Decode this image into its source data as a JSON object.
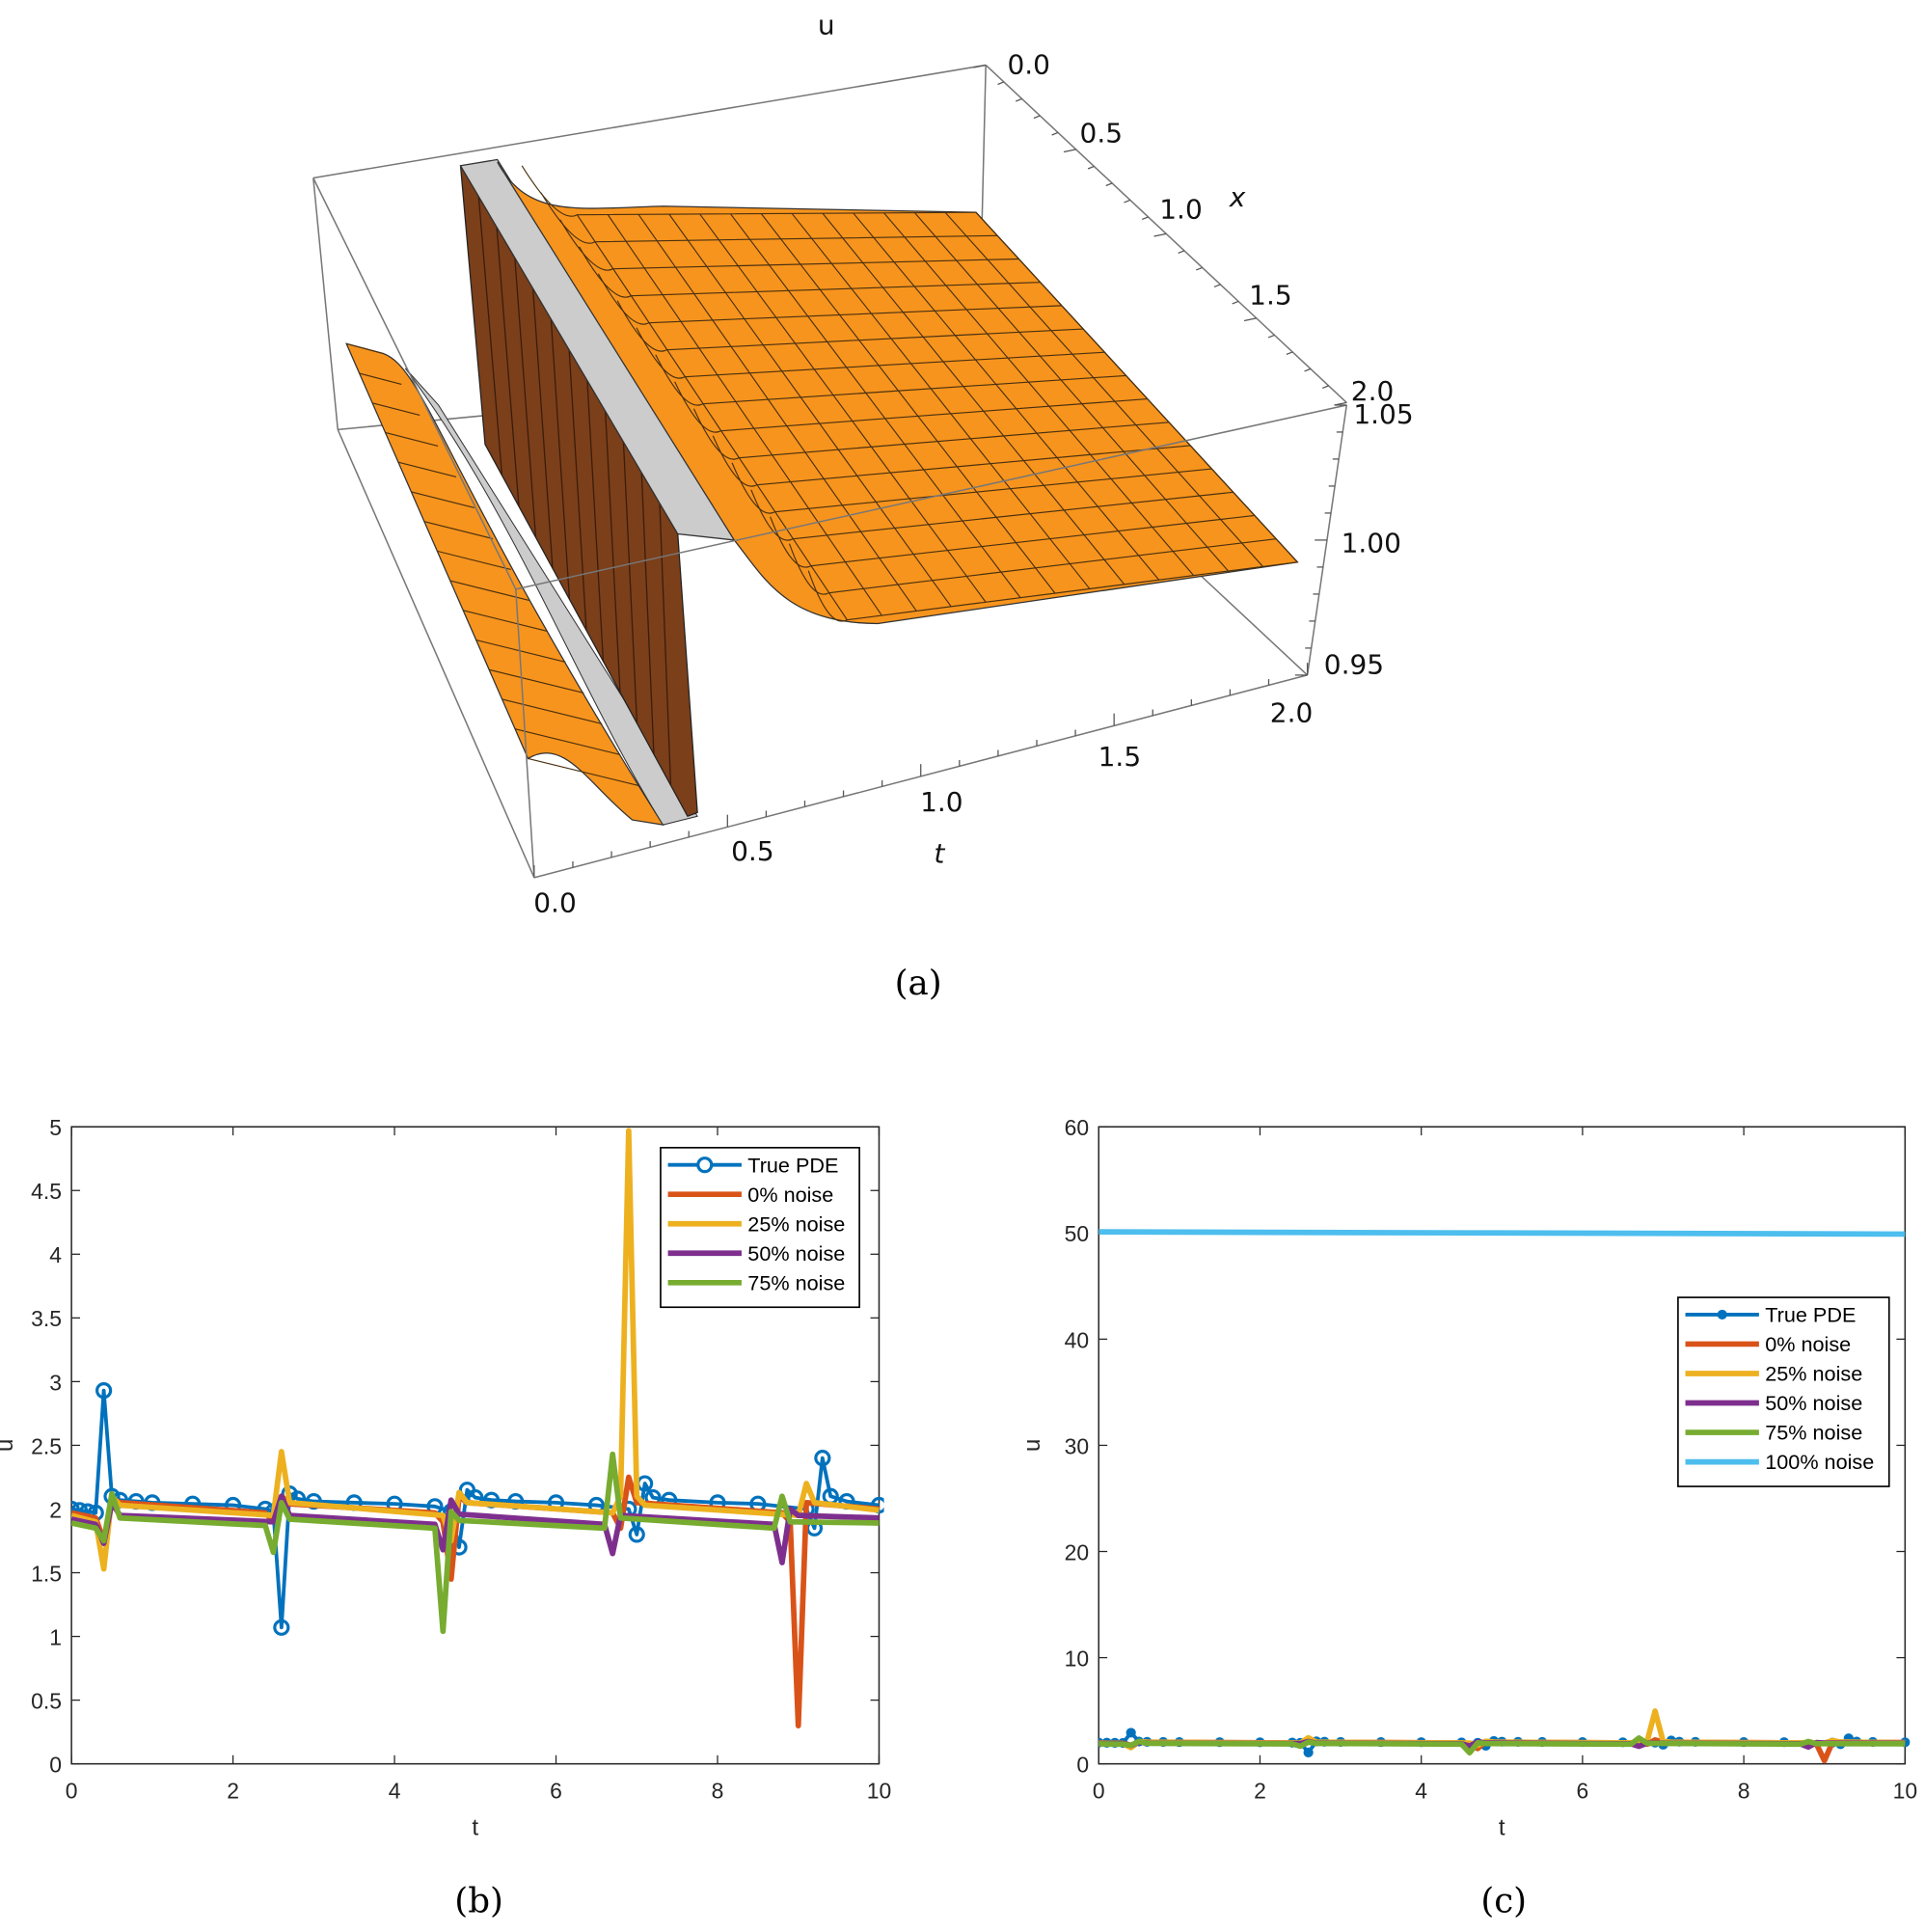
{
  "captions": {
    "a": "(a)",
    "b": "(b)",
    "c": "(c)"
  },
  "surface_plot": {
    "type": "surface3d",
    "zlabel": "u",
    "xlabel": "x",
    "tlabel": "t",
    "x_ticks": [
      "0.0",
      "0.5",
      "1.0",
      "1.5",
      "2.0"
    ],
    "t_ticks": [
      "0.0",
      "0.5",
      "1.0",
      "1.5",
      "2.0"
    ],
    "u_ticks": [
      "0.95",
      "1.00",
      "1.05"
    ],
    "surface_color": "#F7941D",
    "wall_color": "#7B3F1A",
    "underside_color": "#CCCCCC"
  },
  "chart_data": [
    {
      "type": "line",
      "xlabel": "t",
      "ylabel": "u",
      "xlim": [
        0,
        10
      ],
      "ylim": [
        0,
        5
      ],
      "x_ticks": [
        "0",
        "2",
        "4",
        "6",
        "8",
        "10"
      ],
      "y_ticks": [
        "0",
        "0.5",
        "1",
        "1.5",
        "2",
        "2.5",
        "3",
        "3.5",
        "4",
        "4.5",
        "5"
      ],
      "legend_position": "top-right",
      "marker_style": "open-circle",
      "series": [
        {
          "name": "True PDE",
          "color": "#0072BD",
          "marker": true,
          "x": [
            0,
            0.1,
            0.2,
            0.3,
            0.4,
            0.5,
            0.6,
            0.8,
            1.0,
            1.5,
            2.0,
            2.4,
            2.5,
            2.6,
            2.7,
            2.8,
            3.0,
            3.5,
            4.0,
            4.5,
            4.7,
            4.8,
            4.9,
            5.0,
            5.2,
            5.5,
            6.0,
            6.5,
            6.9,
            7.0,
            7.1,
            7.2,
            7.4,
            8.0,
            8.5,
            9.1,
            9.2,
            9.3,
            9.4,
            9.6,
            10
          ],
          "y": [
            2.0,
            1.99,
            1.98,
            1.97,
            2.93,
            2.1,
            2.07,
            2.06,
            2.05,
            2.04,
            2.03,
            2.0,
            1.98,
            1.07,
            2.12,
            2.08,
            2.06,
            2.05,
            2.04,
            2.02,
            1.98,
            1.7,
            2.15,
            2.09,
            2.07,
            2.06,
            2.05,
            2.03,
            2.0,
            1.8,
            2.2,
            2.09,
            2.07,
            2.05,
            2.04,
            2.0,
            1.85,
            2.4,
            2.1,
            2.06,
            2.03
          ]
        },
        {
          "name": "0% noise",
          "color": "#D95319",
          "x": [
            0,
            0.3,
            0.4,
            0.5,
            0.6,
            2.4,
            2.5,
            2.6,
            2.7,
            4.5,
            4.6,
            4.7,
            4.8,
            4.9,
            6.7,
            6.8,
            6.9,
            7.0,
            8.8,
            8.9,
            9.0,
            9.1,
            10
          ],
          "y": [
            1.97,
            1.93,
            1.75,
            2.08,
            2.05,
            1.97,
            1.9,
            2.1,
            2.04,
            1.97,
            1.9,
            1.45,
            2.1,
            2.05,
            1.97,
            1.85,
            2.25,
            2.05,
            1.97,
            1.9,
            0.3,
            2.05,
            2.0
          ]
        },
        {
          "name": "25% noise",
          "color": "#EDB120",
          "x": [
            0,
            0.3,
            0.4,
            0.5,
            0.6,
            2.5,
            2.6,
            2.7,
            4.6,
            4.7,
            4.8,
            4.9,
            6.7,
            6.8,
            6.9,
            7.0,
            7.1,
            9.0,
            9.1,
            9.2,
            10
          ],
          "y": [
            1.95,
            1.9,
            1.53,
            2.1,
            2.03,
            1.95,
            2.45,
            2.05,
            1.95,
            1.75,
            2.13,
            2.05,
            1.97,
            2.1,
            4.97,
            2.1,
            2.03,
            1.95,
            2.2,
            2.05,
            1.99
          ]
        },
        {
          "name": "50% noise",
          "color": "#7E2F8E",
          "x": [
            0,
            0.3,
            0.4,
            0.5,
            0.6,
            2.5,
            2.6,
            2.7,
            4.5,
            4.6,
            4.7,
            4.8,
            6.6,
            6.7,
            6.8,
            8.7,
            8.8,
            8.9,
            9.0,
            10
          ],
          "y": [
            1.92,
            1.88,
            1.73,
            2.05,
            1.95,
            1.9,
            2.1,
            1.95,
            1.88,
            1.68,
            2.07,
            1.96,
            1.88,
            1.65,
            1.95,
            1.88,
            1.58,
            2.0,
            1.95,
            1.93
          ]
        },
        {
          "name": "75% noise",
          "color": "#77AC30",
          "x": [
            0,
            0.3,
            0.4,
            0.5,
            0.6,
            2.4,
            2.5,
            2.6,
            2.7,
            4.5,
            4.6,
            4.7,
            4.8,
            6.6,
            6.7,
            6.8,
            8.7,
            8.8,
            8.9,
            10
          ],
          "y": [
            1.89,
            1.85,
            1.75,
            2.12,
            1.93,
            1.87,
            1.66,
            2.05,
            1.92,
            1.85,
            1.04,
            1.98,
            1.91,
            1.85,
            2.43,
            1.93,
            1.85,
            2.1,
            1.9,
            1.89
          ]
        }
      ]
    },
    {
      "type": "line",
      "xlabel": "t",
      "ylabel": "u",
      "xlim": [
        0,
        10
      ],
      "ylim": [
        0,
        60
      ],
      "x_ticks": [
        "0",
        "2",
        "4",
        "6",
        "8",
        "10"
      ],
      "y_ticks": [
        "0",
        "10",
        "20",
        "30",
        "40",
        "50",
        "60"
      ],
      "legend_position": "right",
      "marker_style": "filled-dot",
      "series": [
        {
          "name": "True PDE",
          "color": "#0072BD",
          "marker": true,
          "x": [
            0,
            0.1,
            0.2,
            0.3,
            0.4,
            0.5,
            0.6,
            0.8,
            1.0,
            1.5,
            2.0,
            2.4,
            2.5,
            2.6,
            2.7,
            2.8,
            3.0,
            3.5,
            4.0,
            4.5,
            4.7,
            4.8,
            4.9,
            5.0,
            5.2,
            5.5,
            6.0,
            6.5,
            6.9,
            7.0,
            7.1,
            7.2,
            7.4,
            8.0,
            8.5,
            9.1,
            9.2,
            9.3,
            9.4,
            9.6,
            10
          ],
          "y": [
            2.0,
            1.99,
            1.98,
            1.97,
            2.93,
            2.1,
            2.07,
            2.06,
            2.05,
            2.04,
            2.03,
            2.0,
            1.98,
            1.07,
            2.12,
            2.08,
            2.06,
            2.05,
            2.04,
            2.02,
            1.98,
            1.7,
            2.15,
            2.09,
            2.07,
            2.06,
            2.05,
            2.03,
            2.0,
            1.8,
            2.2,
            2.09,
            2.07,
            2.05,
            2.04,
            2.0,
            1.85,
            2.4,
            2.1,
            2.06,
            2.03
          ]
        },
        {
          "name": "0% noise",
          "color": "#D95319",
          "x": [
            0,
            0.3,
            0.4,
            0.5,
            0.6,
            2.4,
            2.5,
            2.6,
            2.7,
            4.5,
            4.6,
            4.7,
            4.8,
            4.9,
            6.7,
            6.8,
            6.9,
            7.0,
            8.8,
            8.9,
            9.0,
            9.1,
            10
          ],
          "y": [
            1.97,
            1.93,
            1.75,
            2.08,
            2.05,
            1.97,
            1.9,
            2.1,
            2.04,
            1.97,
            1.9,
            1.45,
            2.1,
            2.05,
            1.97,
            1.85,
            2.25,
            2.05,
            1.97,
            1.9,
            0.3,
            2.05,
            2.0
          ]
        },
        {
          "name": "25% noise",
          "color": "#EDB120",
          "x": [
            0,
            0.3,
            0.4,
            0.5,
            0.6,
            2.5,
            2.6,
            2.7,
            4.6,
            4.7,
            4.8,
            4.9,
            6.7,
            6.8,
            6.9,
            7.0,
            7.1,
            9.0,
            9.1,
            9.2,
            10
          ],
          "y": [
            1.95,
            1.9,
            1.53,
            2.1,
            2.03,
            1.95,
            2.45,
            2.05,
            1.95,
            1.75,
            2.13,
            2.05,
            1.97,
            2.1,
            4.97,
            2.1,
            2.03,
            1.95,
            2.2,
            2.05,
            1.99
          ]
        },
        {
          "name": "50% noise",
          "color": "#7E2F8E",
          "x": [
            0,
            0.3,
            0.4,
            0.5,
            0.6,
            2.5,
            2.6,
            2.7,
            4.5,
            4.6,
            4.7,
            4.8,
            6.6,
            6.7,
            6.8,
            8.7,
            8.8,
            8.9,
            9.0,
            10
          ],
          "y": [
            1.92,
            1.88,
            1.73,
            2.05,
            1.95,
            1.9,
            2.1,
            1.95,
            1.88,
            1.68,
            2.07,
            1.96,
            1.88,
            1.65,
            1.95,
            1.88,
            1.58,
            2.0,
            1.95,
            1.93
          ]
        },
        {
          "name": "75% noise",
          "color": "#77AC30",
          "x": [
            0,
            0.3,
            0.4,
            0.5,
            0.6,
            2.4,
            2.5,
            2.6,
            2.7,
            4.5,
            4.6,
            4.7,
            4.8,
            6.6,
            6.7,
            6.8,
            8.7,
            8.8,
            8.9,
            10
          ],
          "y": [
            1.89,
            1.85,
            1.75,
            2.12,
            1.93,
            1.87,
            1.66,
            2.05,
            1.92,
            1.85,
            1.04,
            1.98,
            1.91,
            1.85,
            2.43,
            1.93,
            1.85,
            2.1,
            1.9,
            1.89
          ]
        },
        {
          "name": "100% noise",
          "color": "#4DBEEE",
          "x": [
            0,
            5,
            10
          ],
          "y": [
            50.1,
            50.0,
            49.9
          ]
        }
      ]
    }
  ]
}
